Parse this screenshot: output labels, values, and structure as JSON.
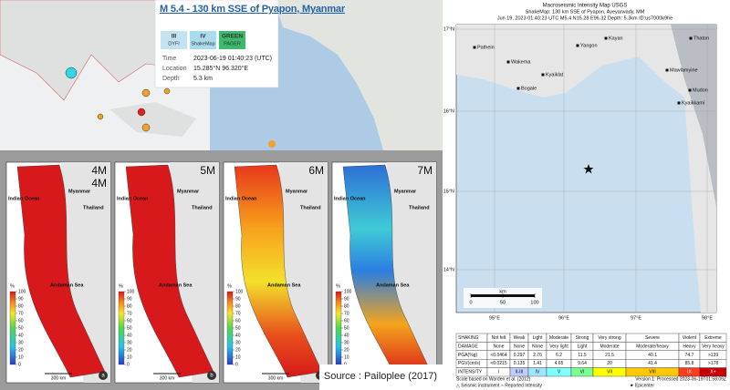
{
  "quake_card": {
    "title": "M 5.4 - 130 km SSE of Pyapon, Myanmar",
    "badges": [
      {
        "level": "III",
        "name": "DYFI"
      },
      {
        "level": "IV",
        "name": "ShakeMap"
      },
      {
        "level": "GREEN",
        "name": "PAGER"
      }
    ],
    "details": [
      {
        "label": "Time",
        "value": "2023-06-19 01:40:23 (UTC)"
      },
      {
        "label": "Location",
        "value": "15.285°N 96.320°E"
      },
      {
        "label": "Depth",
        "value": "5.3 km"
      }
    ]
  },
  "panels": [
    {
      "labels": [
        "4M",
        "4M"
      ],
      "letter": "a"
    },
    {
      "labels": [
        "5M"
      ],
      "letter": "b"
    },
    {
      "labels": [
        "6M"
      ],
      "letter": "c"
    },
    {
      "labels": [
        "7M"
      ],
      "letter": "d"
    }
  ],
  "map_labels": [
    "Indian Ocean",
    "Myanmar",
    "Thailand",
    "Andaman Sea"
  ],
  "scale_label": "300 km",
  "legend": {
    "unit": "%",
    "ticks": [
      100,
      90,
      80,
      70,
      60,
      50,
      40,
      30,
      20,
      10,
      0
    ]
  },
  "source": "Source : Pailoplee (2017)",
  "shakemap": {
    "title": "Macroseismic Intensity Map USGS",
    "subtitle": "ShakeMap: 130 km SSE of Pyapon, Ayeyarwady, MM",
    "info": "Jun 19, 2023 01:40:23 UTC M5.4 N15.28 E96.32 Depth: 5.3km ID:us7000k9he",
    "lat_labels": [
      "17°N",
      "16°N",
      "15°N",
      "14°N"
    ],
    "lon_labels": [
      "95°E",
      "96°E",
      "97°E",
      "98°E"
    ],
    "cities": [
      "Pathein",
      "Yangon",
      "Kayan",
      "Thaton",
      "Wakema",
      "Kyaiklat",
      "Bogale",
      "Mawlamyine",
      "Mudon",
      "Kyaikkami"
    ],
    "scale": {
      "unit": "km",
      "ticks": [
        0,
        50,
        100
      ]
    },
    "table": [
      {
        "header": "SHAKING",
        "cells": [
          "Not felt",
          "Weak",
          "Light",
          "Moderate",
          "Strong",
          "Very strong",
          "Severe",
          "Violent",
          "Extreme"
        ]
      },
      {
        "header": "DAMAGE",
        "cells": [
          "None",
          "None",
          "None",
          "Very light",
          "Light",
          "Moderate",
          "Moderate/heavy",
          "Heavy",
          "Very heavy"
        ]
      },
      {
        "header": "PGA(%g)",
        "cells": [
          "<0.0464",
          "0.297",
          "2.76",
          "6.2",
          "11.5",
          "21.5",
          "40.1",
          "74.7",
          ">139"
        ]
      },
      {
        "header": "PGV(cm/s)",
        "cells": [
          "<0.0215",
          "0.135",
          "1.41",
          "4.65",
          "9.64",
          "20",
          "41.4",
          "85.8",
          ">178"
        ]
      },
      {
        "header": "INTENSITY",
        "cells": [
          "I",
          "II-III",
          "IV",
          "V",
          "VI",
          "VII",
          "VIII",
          "IX",
          "X+"
        ]
      }
    ],
    "footer": {
      "left1": "Scale based on Worden et al. (2012)",
      "right1": "Version 1: Processed 2023-06-19T01:58:09Z",
      "left2": "△ Seismic instrument ○ Reported Intensity",
      "right2": "★ Epicenter"
    }
  }
}
